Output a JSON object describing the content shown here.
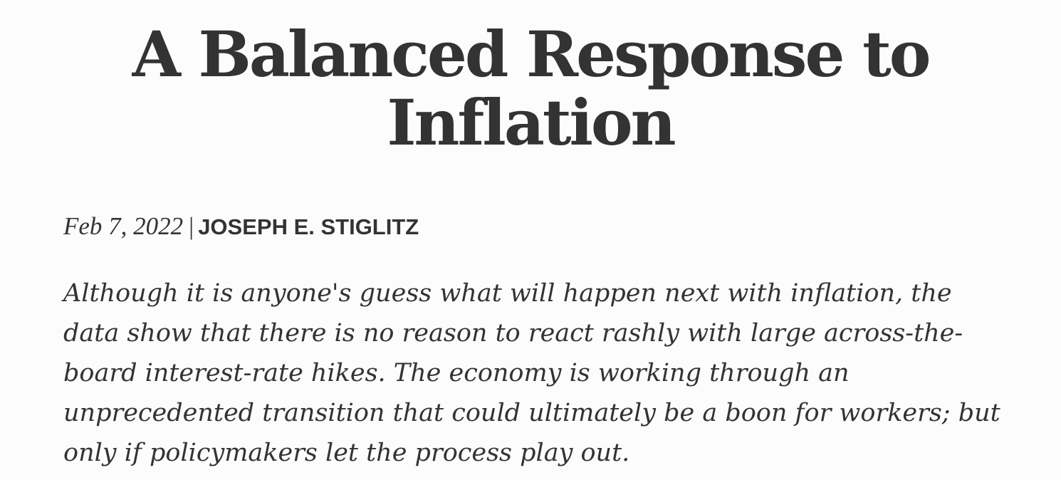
{
  "article": {
    "title": "A Balanced Response to Inflation",
    "date": "Feb 7, 2022",
    "separator": "|",
    "author": "JOSEPH E. STIGLITZ",
    "summary": "Although it is anyone's guess what will happen next with inflation, the data show that there is no reason to react rashly with large across-the-board interest-rate hikes. The economy is working through an unprecedented transition that could ultimately be a boon for workers; but only if policymakers let the process play out."
  }
}
